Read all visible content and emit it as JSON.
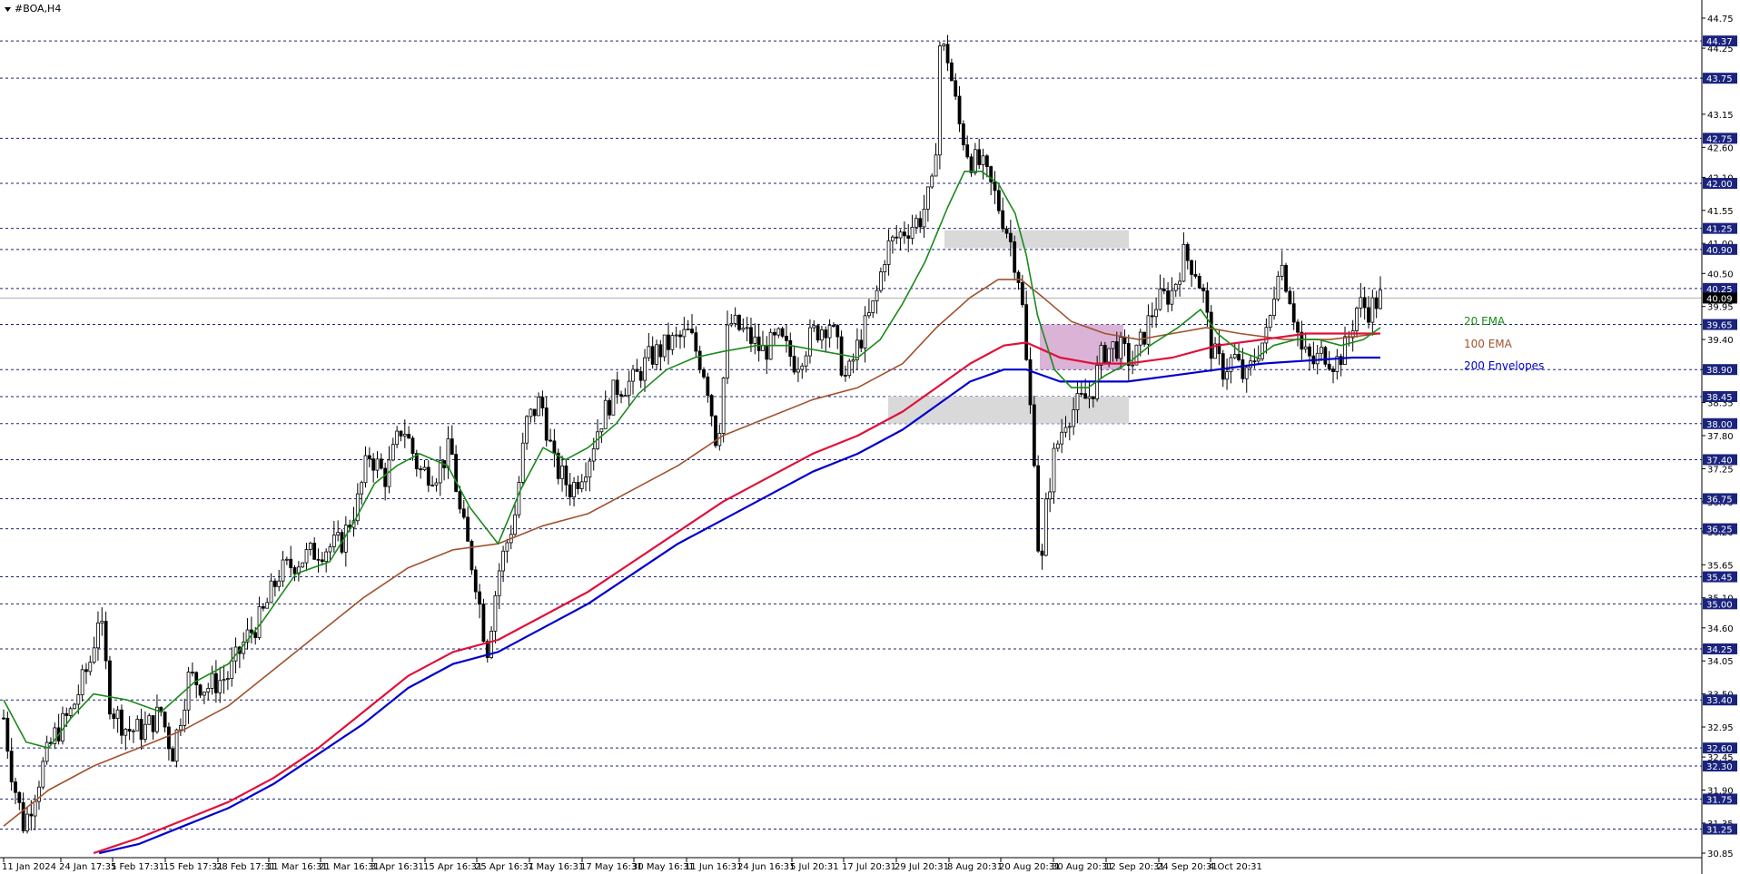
{
  "window": {
    "title": "#BOA,H4",
    "menu_icon": "triangle-down-icon"
  },
  "chart_data": {
    "type": "candlestick",
    "symbol": "#BOA",
    "timeframe": "H4",
    "ylim": [
      30.85,
      44.75
    ],
    "y_ticks": [
      "44.75",
      "44.25",
      "43.75",
      "43.15",
      "42.60",
      "42.10",
      "41.55",
      "41.00",
      "40.50",
      "39.95",
      "39.40",
      "38.90",
      "38.35",
      "37.80",
      "37.25",
      "36.70",
      "36.20",
      "35.65",
      "35.10",
      "34.60",
      "34.05",
      "33.50",
      "32.95",
      "32.45",
      "31.90",
      "31.35",
      "30.85"
    ],
    "x_ticks": [
      "11 Jan 2024",
      "24 Jan 17:31",
      "5 Feb 17:31",
      "15 Feb 17:31",
      "28 Feb 17:31",
      "11 Mar 16:31",
      "21 Mar 16:31",
      "3 Apr 16:31",
      "15 Apr 16:31",
      "25 Apr 16:31",
      "7 May 16:31",
      "17 May 16:31",
      "30 May 16:31",
      "11 Jun 16:31",
      "24 Jun 16:31",
      "5 Jul 20:31",
      "17 Jul 20:31",
      "29 Jul 20:31",
      "8 Aug 20:31",
      "20 Aug 20:31",
      "30 Aug 20:31",
      "12 Sep 20:31",
      "24 Sep 20:31",
      "4 Oct 20:31"
    ],
    "horizontal_levels": [
      {
        "value": 44.37,
        "label": "44.37"
      },
      {
        "value": 43.75,
        "label": "43.75"
      },
      {
        "value": 42.75,
        "label": "42.75"
      },
      {
        "value": 42.0,
        "label": "42.00"
      },
      {
        "value": 41.25,
        "label": "41.25"
      },
      {
        "value": 40.9,
        "label": "40.90"
      },
      {
        "value": 40.25,
        "label": "40.25"
      },
      {
        "value": 39.65,
        "label": "39.65"
      },
      {
        "value": 38.9,
        "label": "38.90"
      },
      {
        "value": 38.45,
        "label": "38.45"
      },
      {
        "value": 38.0,
        "label": "38.00"
      },
      {
        "value": 37.4,
        "label": "37.40"
      },
      {
        "value": 36.75,
        "label": "36.75"
      },
      {
        "value": 36.25,
        "label": "36.25"
      },
      {
        "value": 35.45,
        "label": "35.45"
      },
      {
        "value": 35.0,
        "label": "35.00"
      },
      {
        "value": 34.25,
        "label": "34.25"
      },
      {
        "value": 33.4,
        "label": "33.40"
      },
      {
        "value": 32.6,
        "label": "32.60"
      },
      {
        "value": 32.3,
        "label": "32.30"
      },
      {
        "value": 31.75,
        "label": "31.75"
      },
      {
        "value": 31.25,
        "label": "31.25"
      }
    ],
    "current_price": {
      "value": 40.09,
      "label": "40.09"
    },
    "legend": [
      {
        "name": "20 EMA",
        "color": "#1a8a1a"
      },
      {
        "name": "100 EMA",
        "color": "#a0522d"
      },
      {
        "name": "200 Envelopes",
        "color": "#0000cc"
      }
    ],
    "series_colors": {
      "ema20": "#1a8a1a",
      "ema100": "#a0522d",
      "env_upper": "#e0103a",
      "env_lower": "#0000cc",
      "candle": "#000000",
      "level_label_bg": "#1a237e"
    },
    "zones": [
      {
        "name": "resistance",
        "from_x": "8 Aug 20:31",
        "to_x": "4 Oct 20:31",
        "y1": 40.92,
        "y2": 41.22,
        "color": "#d9d9d9"
      },
      {
        "name": "support",
        "from_x": "8 Aug 20:31",
        "to_x": "4 Oct 20:31",
        "y1": 38.0,
        "y2": 38.45,
        "color": "#d9d9d9"
      },
      {
        "name": "consolidation",
        "from_x": "24 Sep 20:31",
        "to_x": "4 Oct 20:31",
        "y1": 38.9,
        "y2": 39.65,
        "color": "#d5a6d0"
      }
    ],
    "price_path": [
      [
        0,
        33.1
      ],
      [
        8,
        32.1
      ],
      [
        18,
        31.3
      ],
      [
        25,
        31.7
      ],
      [
        35,
        32.3
      ],
      [
        45,
        32.8
      ],
      [
        60,
        33.2
      ],
      [
        78,
        34.1
      ],
      [
        85,
        34.9
      ],
      [
        95,
        33.3
      ],
      [
        110,
        32.9
      ],
      [
        125,
        32.9
      ],
      [
        140,
        33.2
      ],
      [
        150,
        32.5
      ],
      [
        165,
        33.8
      ],
      [
        180,
        33.6
      ],
      [
        200,
        33.8
      ],
      [
        215,
        34.4
      ],
      [
        230,
        34.8
      ],
      [
        245,
        35.5
      ],
      [
        260,
        35.7
      ],
      [
        280,
        35.9
      ],
      [
        300,
        36.0
      ],
      [
        315,
        36.7
      ],
      [
        325,
        37.5
      ],
      [
        340,
        37.1
      ],
      [
        355,
        38.0
      ],
      [
        370,
        37.2
      ],
      [
        385,
        37.2
      ],
      [
        398,
        37.6
      ],
      [
        405,
        36.6
      ],
      [
        420,
        35.4
      ],
      [
        430,
        34.2
      ],
      [
        440,
        35.5
      ],
      [
        455,
        36.5
      ],
      [
        465,
        38.0
      ],
      [
        478,
        38.4
      ],
      [
        490,
        37.3
      ],
      [
        505,
        36.9
      ],
      [
        520,
        37.4
      ],
      [
        530,
        38.0
      ],
      [
        545,
        38.6
      ],
      [
        560,
        38.7
      ],
      [
        575,
        39.1
      ],
      [
        590,
        39.3
      ],
      [
        610,
        39.5
      ],
      [
        625,
        38.8
      ],
      [
        635,
        37.6
      ],
      [
        645,
        39.7
      ],
      [
        660,
        39.5
      ],
      [
        675,
        39.2
      ],
      [
        690,
        39.4
      ],
      [
        705,
        39.0
      ],
      [
        720,
        39.5
      ],
      [
        735,
        39.7
      ],
      [
        750,
        38.7
      ],
      [
        760,
        39.3
      ],
      [
        775,
        40.0
      ],
      [
        785,
        40.9
      ],
      [
        800,
        41.2
      ],
      [
        815,
        41.4
      ],
      [
        828,
        42.0
      ],
      [
        833,
        44.3
      ],
      [
        840,
        44.1
      ],
      [
        850,
        43.0
      ],
      [
        860,
        42.4
      ],
      [
        870,
        42.3
      ],
      [
        882,
        41.8
      ],
      [
        895,
        41.1
      ],
      [
        905,
        40.3
      ],
      [
        910,
        39.0
      ],
      [
        918,
        37.3
      ],
      [
        922,
        35.2
      ],
      [
        928,
        36.7
      ],
      [
        935,
        37.5
      ],
      [
        945,
        38.1
      ],
      [
        955,
        38.3
      ],
      [
        968,
        38.5
      ],
      [
        978,
        39.2
      ],
      [
        990,
        39.3
      ],
      [
        1005,
        39.0
      ],
      [
        1015,
        39.5
      ],
      [
        1025,
        40.0
      ],
      [
        1040,
        40.2
      ],
      [
        1050,
        40.8
      ],
      [
        1060,
        40.6
      ],
      [
        1068,
        40.1
      ],
      [
        1075,
        39.2
      ],
      [
        1085,
        38.9
      ],
      [
        1095,
        39.1
      ],
      [
        1105,
        38.7
      ],
      [
        1115,
        39.2
      ],
      [
        1125,
        39.5
      ],
      [
        1135,
        40.8
      ],
      [
        1145,
        40.1
      ],
      [
        1155,
        39.2
      ],
      [
        1165,
        39.0
      ],
      [
        1175,
        39.2
      ],
      [
        1185,
        39.0
      ],
      [
        1195,
        39.3
      ],
      [
        1205,
        40.0
      ],
      [
        1215,
        39.9
      ],
      [
        1225,
        40.1
      ]
    ],
    "ema20_path": [
      [
        0,
        33.4
      ],
      [
        20,
        32.7
      ],
      [
        40,
        32.6
      ],
      [
        60,
        33.1
      ],
      [
        80,
        33.5
      ],
      [
        110,
        33.4
      ],
      [
        140,
        33.2
      ],
      [
        170,
        33.7
      ],
      [
        200,
        34.0
      ],
      [
        230,
        34.7
      ],
      [
        260,
        35.5
      ],
      [
        290,
        35.7
      ],
      [
        310,
        36.3
      ],
      [
        330,
        37.0
      ],
      [
        350,
        37.3
      ],
      [
        370,
        37.5
      ],
      [
        395,
        37.3
      ],
      [
        415,
        36.6
      ],
      [
        440,
        36.0
      ],
      [
        460,
        36.9
      ],
      [
        480,
        37.6
      ],
      [
        500,
        37.4
      ],
      [
        520,
        37.6
      ],
      [
        545,
        38.0
      ],
      [
        565,
        38.5
      ],
      [
        590,
        38.9
      ],
      [
        615,
        39.1
      ],
      [
        640,
        39.2
      ],
      [
        670,
        39.3
      ],
      [
        700,
        39.3
      ],
      [
        730,
        39.2
      ],
      [
        760,
        39.1
      ],
      [
        780,
        39.4
      ],
      [
        800,
        40.0
      ],
      [
        820,
        40.7
      ],
      [
        840,
        41.6
      ],
      [
        855,
        42.2
      ],
      [
        870,
        42.2
      ],
      [
        885,
        42.0
      ],
      [
        900,
        41.5
      ],
      [
        910,
        40.8
      ],
      [
        920,
        39.8
      ],
      [
        935,
        38.9
      ],
      [
        950,
        38.6
      ],
      [
        965,
        38.6
      ],
      [
        980,
        38.8
      ],
      [
        1000,
        39.0
      ],
      [
        1020,
        39.3
      ],
      [
        1045,
        39.6
      ],
      [
        1065,
        39.9
      ],
      [
        1080,
        39.5
      ],
      [
        1100,
        39.2
      ],
      [
        1115,
        39.1
      ],
      [
        1130,
        39.3
      ],
      [
        1150,
        39.4
      ],
      [
        1170,
        39.4
      ],
      [
        1190,
        39.3
      ],
      [
        1210,
        39.4
      ],
      [
        1225,
        39.6
      ]
    ],
    "ema100_path": [
      [
        0,
        31.3
      ],
      [
        40,
        31.9
      ],
      [
        80,
        32.3
      ],
      [
        120,
        32.6
      ],
      [
        160,
        32.9
      ],
      [
        200,
        33.3
      ],
      [
        240,
        33.9
      ],
      [
        280,
        34.5
      ],
      [
        320,
        35.1
      ],
      [
        360,
        35.6
      ],
      [
        400,
        35.9
      ],
      [
        440,
        36.0
      ],
      [
        480,
        36.3
      ],
      [
        520,
        36.5
      ],
      [
        560,
        36.9
      ],
      [
        600,
        37.3
      ],
      [
        640,
        37.8
      ],
      [
        680,
        38.1
      ],
      [
        720,
        38.4
      ],
      [
        760,
        38.6
      ],
      [
        800,
        39.0
      ],
      [
        830,
        39.6
      ],
      [
        860,
        40.1
      ],
      [
        885,
        40.4
      ],
      [
        905,
        40.4
      ],
      [
        925,
        40.1
      ],
      [
        950,
        39.7
      ],
      [
        980,
        39.5
      ],
      [
        1010,
        39.4
      ],
      [
        1040,
        39.5
      ],
      [
        1070,
        39.6
      ],
      [
        1100,
        39.5
      ],
      [
        1140,
        39.4
      ],
      [
        1180,
        39.4
      ],
      [
        1225,
        39.5
      ]
    ],
    "env_upper_path": [
      [
        80,
        30.85
      ],
      [
        120,
        31.1
      ],
      [
        160,
        31.4
      ],
      [
        200,
        31.7
      ],
      [
        240,
        32.1
      ],
      [
        280,
        32.6
      ],
      [
        320,
        33.2
      ],
      [
        360,
        33.8
      ],
      [
        400,
        34.2
      ],
      [
        440,
        34.4
      ],
      [
        480,
        34.8
      ],
      [
        520,
        35.2
      ],
      [
        560,
        35.7
      ],
      [
        600,
        36.2
      ],
      [
        640,
        36.7
      ],
      [
        680,
        37.1
      ],
      [
        720,
        37.5
      ],
      [
        760,
        37.8
      ],
      [
        800,
        38.2
      ],
      [
        830,
        38.6
      ],
      [
        860,
        39.0
      ],
      [
        890,
        39.3
      ],
      [
        910,
        39.35
      ],
      [
        940,
        39.1
      ],
      [
        970,
        39.0
      ],
      [
        1000,
        39.0
      ],
      [
        1040,
        39.1
      ],
      [
        1080,
        39.3
      ],
      [
        1120,
        39.4
      ],
      [
        1160,
        39.5
      ],
      [
        1200,
        39.5
      ],
      [
        1225,
        39.5
      ]
    ],
    "env_lower_path": [
      [
        85,
        30.85
      ],
      [
        120,
        31.0
      ],
      [
        160,
        31.3
      ],
      [
        200,
        31.6
      ],
      [
        240,
        32.0
      ],
      [
        280,
        32.5
      ],
      [
        320,
        33.0
      ],
      [
        360,
        33.6
      ],
      [
        400,
        34.0
      ],
      [
        440,
        34.2
      ],
      [
        480,
        34.6
      ],
      [
        520,
        35.0
      ],
      [
        560,
        35.5
      ],
      [
        600,
        36.0
      ],
      [
        640,
        36.4
      ],
      [
        680,
        36.8
      ],
      [
        720,
        37.2
      ],
      [
        760,
        37.5
      ],
      [
        800,
        37.9
      ],
      [
        830,
        38.3
      ],
      [
        860,
        38.7
      ],
      [
        890,
        38.9
      ],
      [
        910,
        38.9
      ],
      [
        940,
        38.7
      ],
      [
        970,
        38.7
      ],
      [
        1000,
        38.7
      ],
      [
        1040,
        38.8
      ],
      [
        1080,
        38.9
      ],
      [
        1120,
        39.0
      ],
      [
        1160,
        39.05
      ],
      [
        1200,
        39.1
      ],
      [
        1225,
        39.1
      ]
    ]
  }
}
